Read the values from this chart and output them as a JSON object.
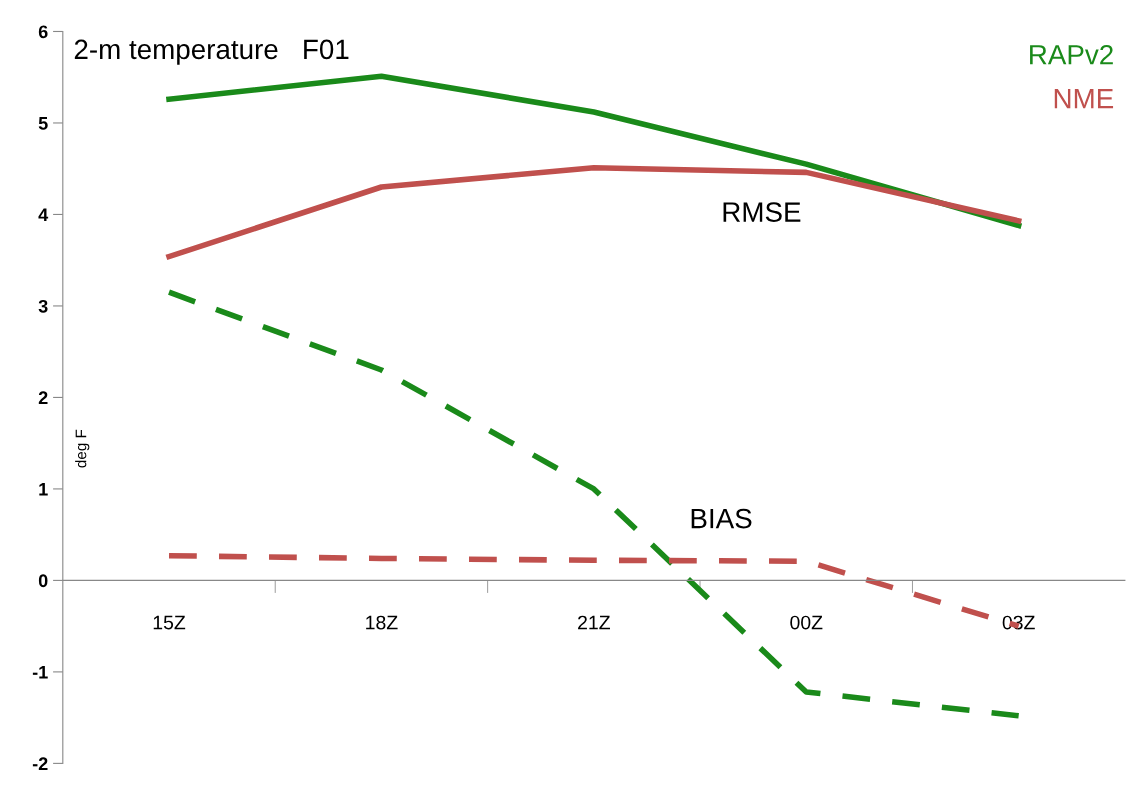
{
  "chart_data": {
    "type": "line",
    "title": "2-m temperature   F01",
    "ylabel": "deg F",
    "categories": [
      "15Z",
      "18Z",
      "21Z",
      "00Z",
      "03Z"
    ],
    "series": [
      {
        "name": "RAPv2",
        "color": "#1a8a1a",
        "line_style": "solid",
        "values": [
          5.26,
          5.51,
          5.12,
          4.55,
          3.88
        ]
      },
      {
        "name": "NME",
        "color": "#c0504d",
        "line_style": "solid",
        "values": [
          3.54,
          4.3,
          4.51,
          4.46,
          3.93
        ]
      },
      {
        "color": "#1a8a1a",
        "line_style": "dashed",
        "values": [
          3.15,
          2.3,
          1.0,
          -1.22,
          -1.48
        ]
      },
      {
        "color": "#c0504d",
        "line_style": "dashed",
        "values": [
          0.27,
          0.24,
          0.22,
          0.21,
          -0.5
        ]
      }
    ],
    "annotations": [
      "RMSE",
      "BIAS"
    ],
    "ylim": [
      -2,
      6
    ],
    "yticks": [
      {
        "value": -2,
        "label": "-2"
      },
      {
        "value": -1,
        "label": "-1"
      },
      0,
      1,
      2,
      3,
      4,
      5,
      6
    ],
    "legend": "top right",
    "grid": false,
    "marker": "none"
  }
}
